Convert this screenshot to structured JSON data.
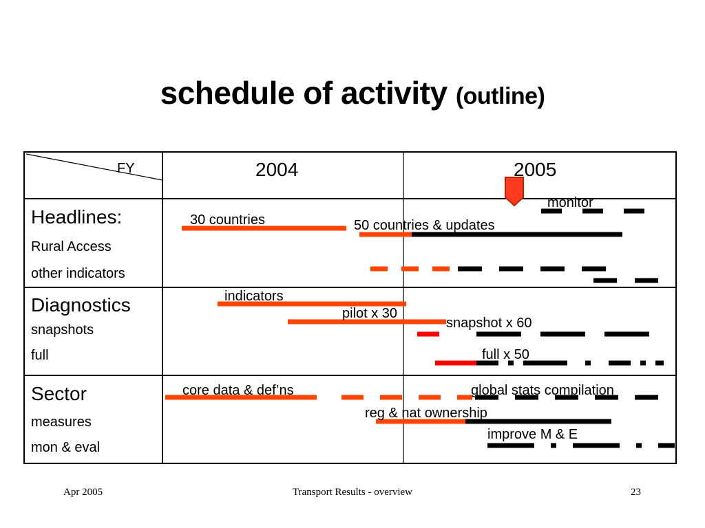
{
  "title": {
    "main": "schedule of activity",
    "sub": "(outline)"
  },
  "header": {
    "corner": "FY",
    "col1": "2004",
    "col2": "2005"
  },
  "rows": {
    "headlines": {
      "title": "Headlines:",
      "lines": [
        "Rural Access",
        "other indicators"
      ]
    },
    "diagnostics": {
      "title": "Diagnostics",
      "lines": [
        "snapshots",
        "full"
      ]
    },
    "sector": {
      "title": "Sector",
      "lines": [
        "measures",
        "mon & eval"
      ]
    }
  },
  "annotations": {
    "monitor": "monitor",
    "thirty_countries": "30 countries",
    "fifty_countries": "50 countries & updates",
    "indicators": "indicators",
    "pilot": "pilot x 30",
    "snapshot": "snapshot x 60",
    "full": "full x 50",
    "core_data": "core data & def’ns",
    "global_stats": "global  stats compilation",
    "reg_nat": "reg & nat ownership",
    "improve": "improve M & E"
  },
  "colors": {
    "orange": "#FF4500",
    "red": "#FF0000",
    "black": "#000000",
    "marker_fill": "#FF3B1F",
    "marker_stroke": "#C02000"
  },
  "footer": {
    "left": "Apr 2005",
    "center": "Transport Results - overview",
    "right": "23"
  }
}
